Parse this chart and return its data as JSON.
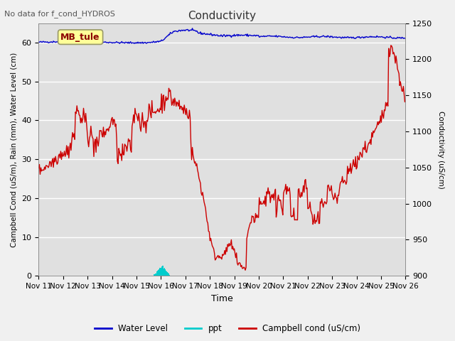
{
  "title": "Conductivity",
  "title_top_left": "No data for f_cond_HYDROS",
  "xlabel": "Time",
  "ylabel_left": "Campbell Cond (uS/m), Rain (mm), Water Level (cm)",
  "ylabel_right": "Conductivity (uS/cm)",
  "ylim_left": [
    0,
    65
  ],
  "ylim_right": [
    900,
    1250
  ],
  "x_ticks": [
    "Nov 11",
    "Nov 12",
    "Nov 13",
    "Nov 14",
    "Nov 15",
    "Nov 16",
    "Nov 17",
    "Nov 18",
    "Nov 19",
    "Nov 20",
    "Nov 21",
    "Nov 22",
    "Nov 23",
    "Nov 24",
    "Nov 25",
    "Nov 26"
  ],
  "annotation_box": "MB_tule",
  "plot_bg_color": "#e8e8e8",
  "fig_bg_color": "#f0f0f0",
  "legend_items": [
    "Water Level",
    "ppt",
    "Campbell cond (uS/cm)"
  ],
  "legend_colors": [
    "#0000cc",
    "#00cccc",
    "#cc0000"
  ],
  "n_days": 15,
  "n_points": 500
}
